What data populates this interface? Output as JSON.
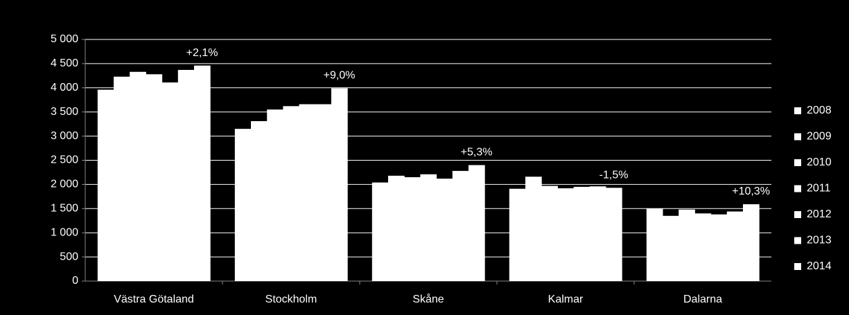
{
  "chart_data": {
    "type": "bar",
    "categories": [
      "Västra Götaland",
      "Stockholm",
      "Skåne",
      "Kalmar",
      "Dalarna"
    ],
    "series": [
      {
        "name": "2008",
        "color": "#ffffff",
        "values": [
          3960,
          3150,
          2040,
          1910,
          1500
        ]
      },
      {
        "name": "2009",
        "color": "#ffffff",
        "values": [
          4230,
          3310,
          2180,
          2160,
          1350
        ]
      },
      {
        "name": "2010",
        "color": "#ffffff",
        "values": [
          4330,
          3550,
          2150,
          1970,
          1480
        ]
      },
      {
        "name": "2011",
        "color": "#ffffff",
        "values": [
          4280,
          3620,
          2210,
          1920,
          1400
        ]
      },
      {
        "name": "2012",
        "color": "#ffffff",
        "values": [
          4110,
          3660,
          2120,
          1950,
          1380
        ]
      },
      {
        "name": "2013",
        "color": "#ffffff",
        "values": [
          4370,
          3660,
          2280,
          1960,
          1440
        ]
      },
      {
        "name": "2014",
        "color": "#ffffff",
        "values": [
          4460,
          3990,
          2400,
          1930,
          1590
        ]
      }
    ],
    "annotations": [
      "+2,1%",
      "+9,0%",
      "+5,3%",
      "-1,5%",
      "+10,3%"
    ],
    "ylim": [
      0,
      5000
    ],
    "yticks": [
      0,
      {
        "value": 500,
        "label": "500"
      },
      {
        "value": 1000,
        "label": "1 000"
      },
      {
        "value": 1500,
        "label": "1 500"
      },
      {
        "value": 2000,
        "label": "2 000"
      },
      {
        "value": 2500,
        "label": "2 500"
      },
      {
        "value": 3000,
        "label": "3 000"
      },
      {
        "value": 3500,
        "label": "3 500"
      },
      {
        "value": 4000,
        "label": "4 000"
      },
      {
        "value": 4500,
        "label": "4 500"
      },
      {
        "value": 5000,
        "label": "5 000"
      }
    ],
    "grid": true,
    "legend": "right"
  }
}
